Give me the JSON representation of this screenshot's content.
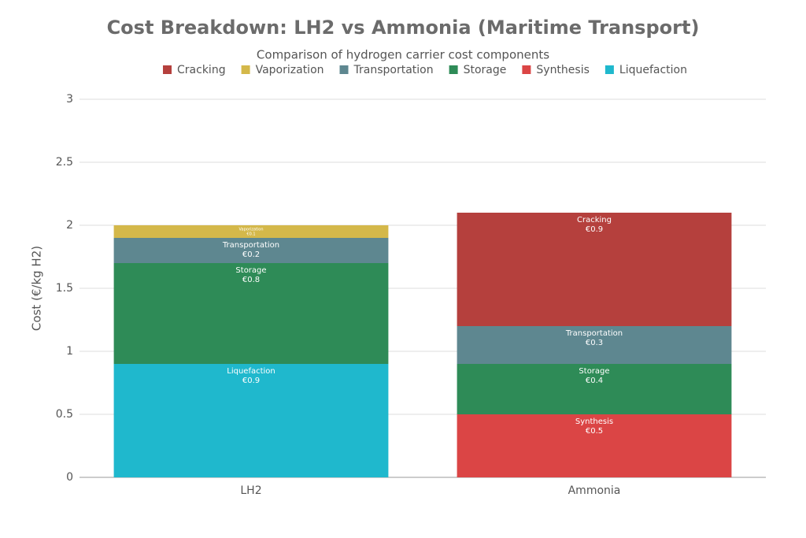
{
  "chart_data": {
    "type": "stacked-bar",
    "title": "Cost Breakdown: LH2 vs Ammonia (Maritime Transport)",
    "subtitle": "Comparison of hydrogen carrier cost components",
    "y_label": "Cost (€/kg H2)",
    "categories": [
      "LH2",
      "Ammonia"
    ],
    "series": [
      {
        "name": "Cracking",
        "color": "#b5403d",
        "values": [
          null,
          0.9
        ],
        "value_labels": [
          null,
          "€0.9"
        ]
      },
      {
        "name": "Vaporization",
        "color": "#d4b84a",
        "values": [
          0.1,
          null
        ],
        "value_labels": [
          "€0.1",
          null
        ]
      },
      {
        "name": "Transportation",
        "color": "#5e8790",
        "values": [
          0.2,
          0.3
        ],
        "value_labels": [
          "€0.2",
          "€0.3"
        ]
      },
      {
        "name": "Storage",
        "color": "#2e8b57",
        "values": [
          0.8,
          0.4
        ],
        "value_labels": [
          "€0.8",
          "€0.4"
        ]
      },
      {
        "name": "Synthesis",
        "color": "#db4545",
        "values": [
          null,
          0.5
        ],
        "value_labels": [
          null,
          "€0.5"
        ]
      },
      {
        "name": "Liquefaction",
        "color": "#1fb8cd",
        "values": [
          0.9,
          null
        ],
        "value_labels": [
          "€0.9",
          null
        ]
      }
    ],
    "ylim": [
      0,
      3
    ],
    "yticks": [
      0,
      0.5,
      1,
      1.5,
      2,
      2.5,
      3
    ],
    "grid": true
  }
}
